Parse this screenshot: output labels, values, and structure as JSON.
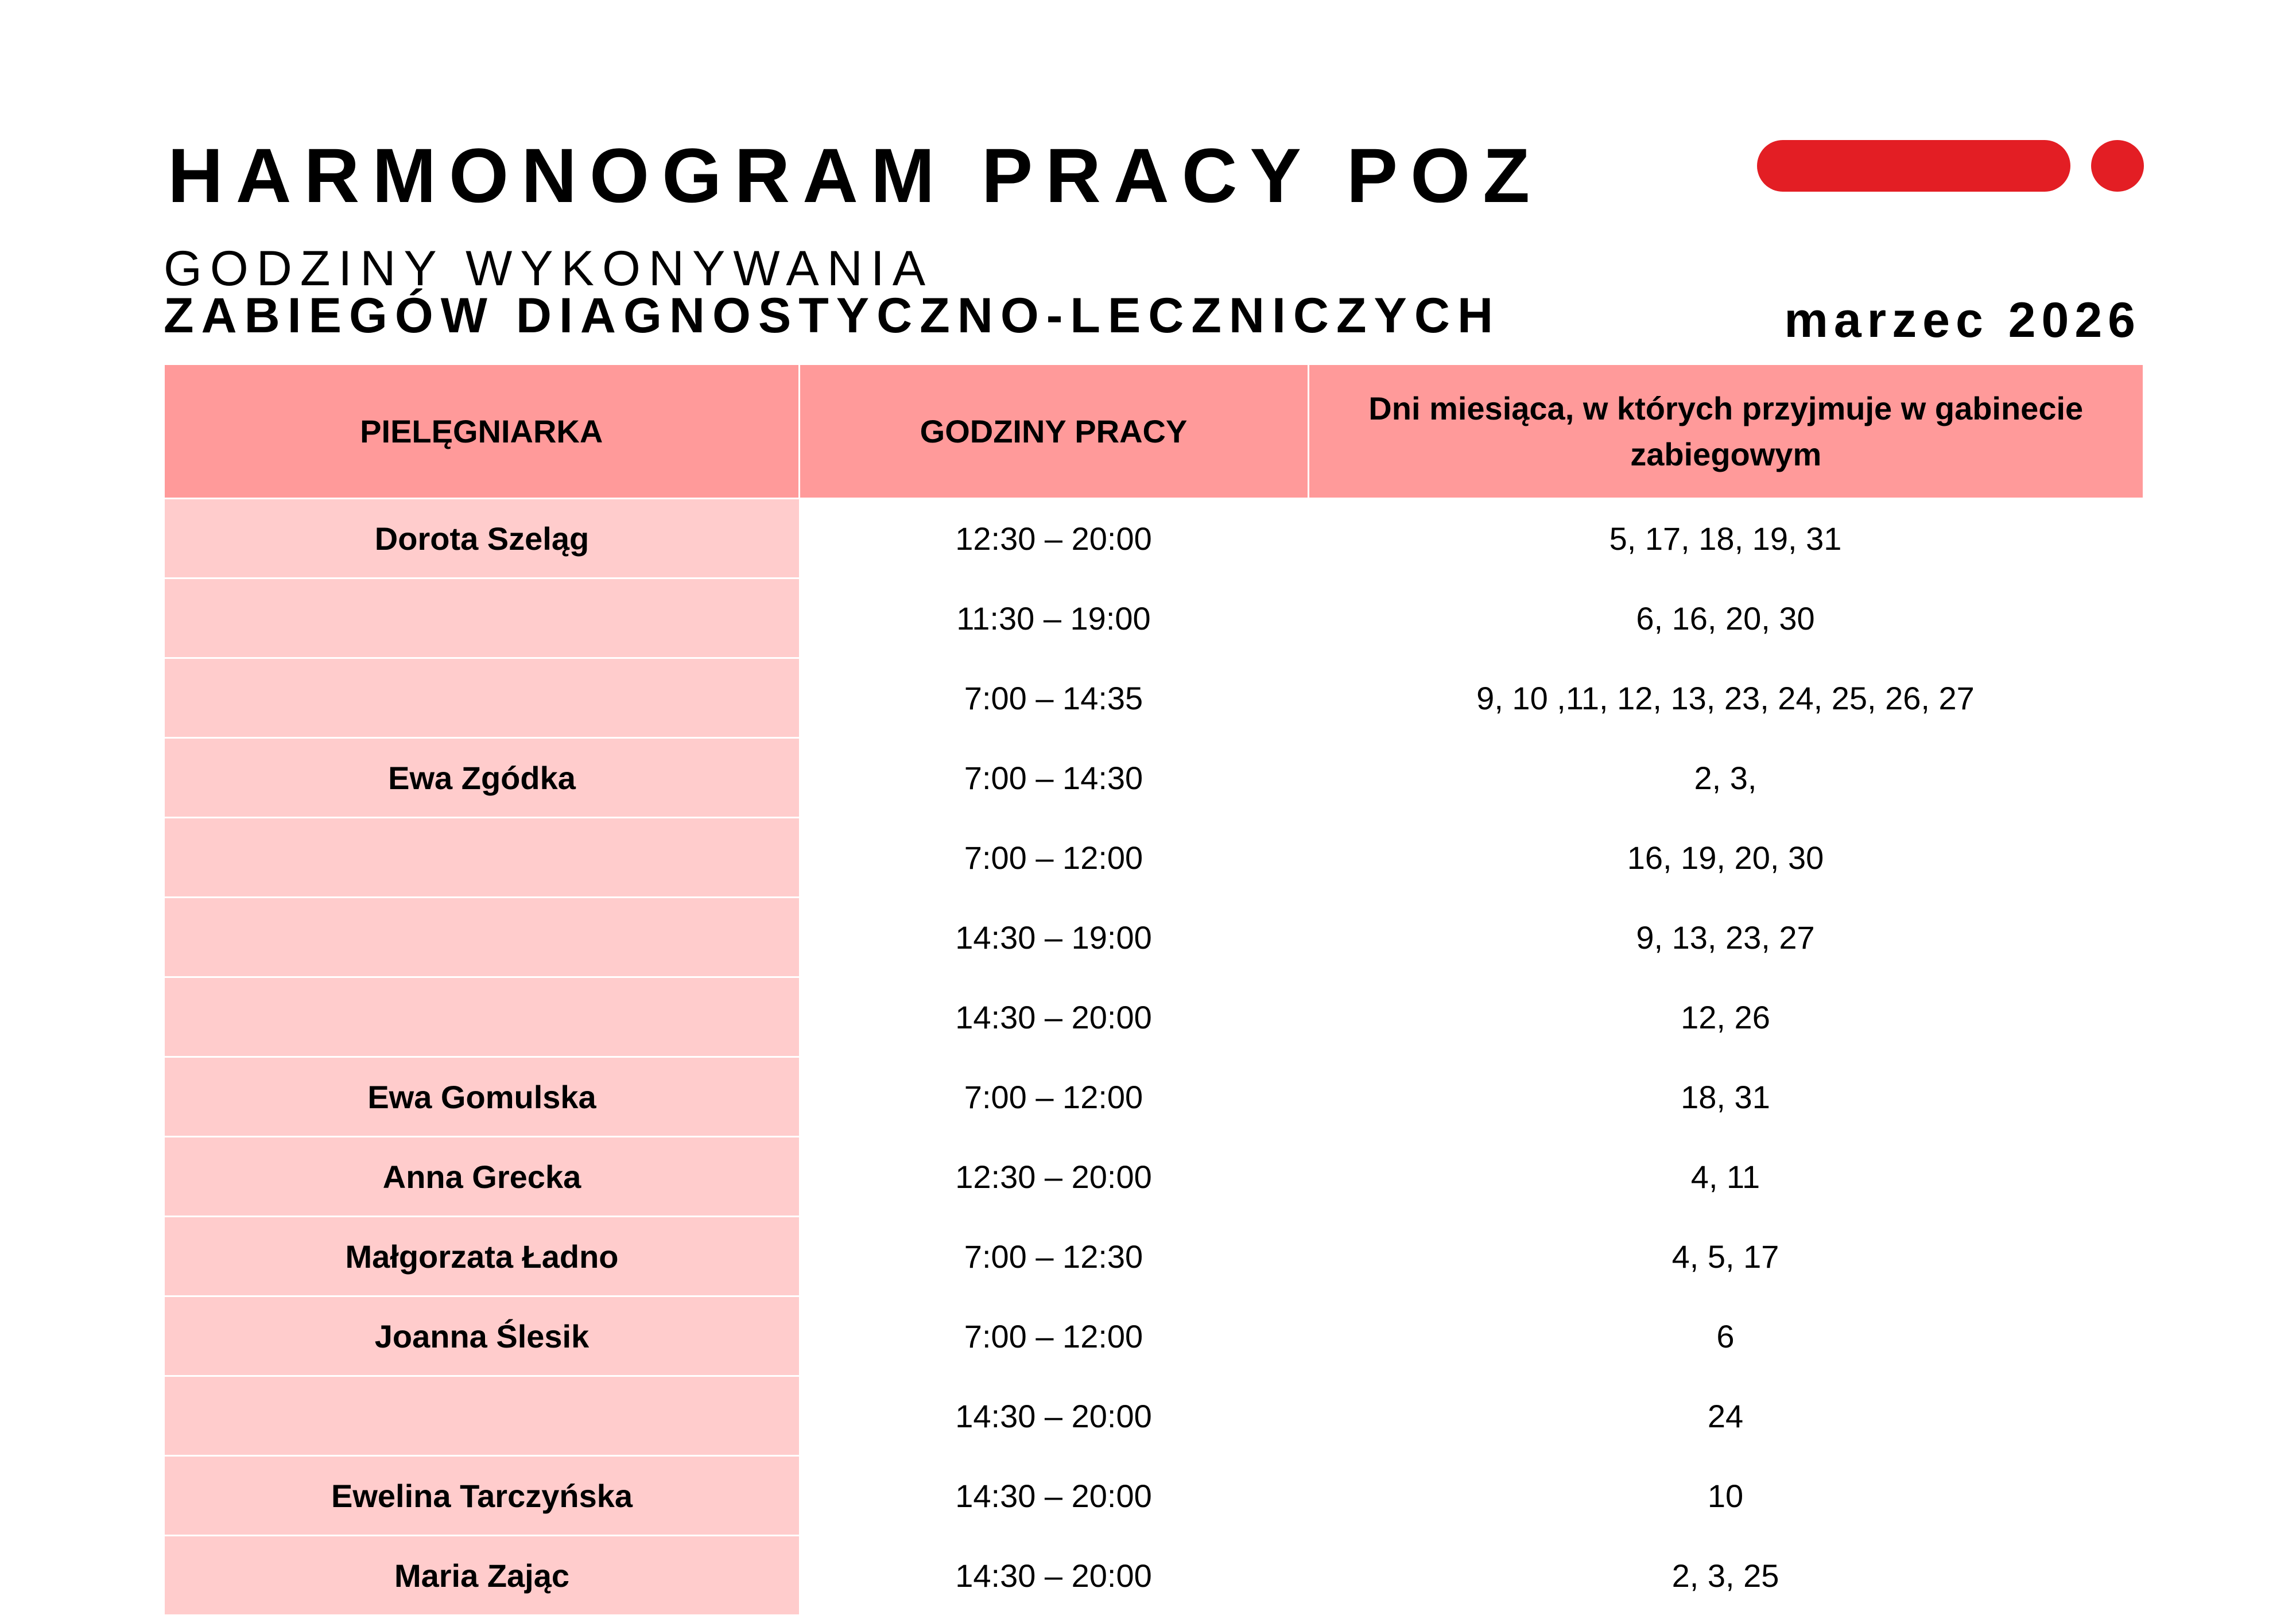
{
  "header": {
    "title": "HARMONOGRAM PRACY POZ",
    "subtitle_line1": "GODZINY WYKONYWANIA",
    "subtitle_line2": "ZABIEGÓW DIAGNOSTYCZNO-LECZNICZYCH",
    "month": "marzec 2026"
  },
  "colors": {
    "accent_red": "#e31e24",
    "header_bg": "#ff9a9a",
    "name_col_bg": "#ffcccc"
  },
  "table": {
    "columns": [
      "PIELĘGNIARKA",
      "GODZINY PRACY",
      "Dni miesiąca, w których przyjmuje w gabinecie zabiegowym"
    ],
    "rows": [
      {
        "name": "Dorota Szeląg",
        "hours": "12:30 – 20:00",
        "days": "5, 17, 18, 19, 31"
      },
      {
        "name": "",
        "hours": "11:30 – 19:00",
        "days": "6, 16, 20, 30"
      },
      {
        "name": "",
        "hours": "7:00 – 14:35",
        "days": "9, 10 ,11, 12, 13, 23, 24, 25, 26, 27"
      },
      {
        "name": "Ewa Zgódka",
        "hours": "7:00 – 14:30",
        "days": "2, 3,"
      },
      {
        "name": "",
        "hours": "7:00 – 12:00",
        "days": "16, 19, 20, 30"
      },
      {
        "name": "",
        "hours": "14:30 – 19:00",
        "days": "9, 13, 23, 27"
      },
      {
        "name": "",
        "hours": "14:30 – 20:00",
        "days": "12, 26"
      },
      {
        "name": "Ewa Gomulska",
        "hours": "7:00 – 12:00",
        "days": "18, 31"
      },
      {
        "name": "Anna Grecka",
        "hours": "12:30 – 20:00",
        "days": "4, 11"
      },
      {
        "name": "Małgorzata Ładno",
        "hours": "7:00 – 12:30",
        "days": "4, 5, 17"
      },
      {
        "name": "Joanna Ślesik",
        "hours": "7:00 – 12:00",
        "days": "6"
      },
      {
        "name": "",
        "hours": "14:30 – 20:00",
        "days": "24"
      },
      {
        "name": "Ewelina Tarczyńska",
        "hours": "14:30 – 20:00",
        "days": "10"
      },
      {
        "name": "Maria Zając",
        "hours": "14:30 – 20:00",
        "days": "2, 3, 25"
      }
    ]
  }
}
